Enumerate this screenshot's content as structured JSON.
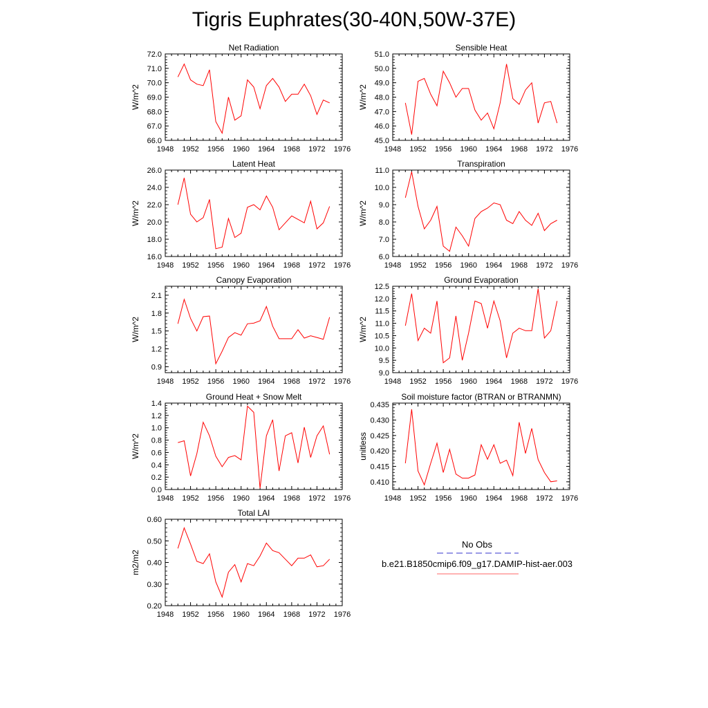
{
  "title": "Tigris Euphrates(30-40N,50W-37E)",
  "legend": {
    "entries": [
      {
        "label": "No Obs",
        "color": "#3333cc",
        "dash": "dashed"
      },
      {
        "label": "b.e21.B1850cmip6.f09_g17.DAMIP-hist-aer.003",
        "color": "#ff6666",
        "dash": "solid"
      }
    ]
  },
  "chart_data": [
    {
      "type": "line",
      "title": "Net Radiation",
      "ylabel": "W/m^2",
      "xlim": [
        1948,
        1976
      ],
      "xticks": [
        1948,
        1952,
        1956,
        1960,
        1964,
        1968,
        1972,
        1976
      ],
      "ylim": [
        66.0,
        72.0
      ],
      "yticks": [
        "66.0",
        "67.0",
        "68.0",
        "69.0",
        "70.0",
        "71.0",
        "72.0"
      ],
      "x": [
        1950,
        1951,
        1952,
        1953,
        1954,
        1955,
        1956,
        1957,
        1958,
        1959,
        1960,
        1961,
        1962,
        1963,
        1964,
        1965,
        1966,
        1967,
        1968,
        1969,
        1970,
        1971,
        1972,
        1973,
        1974
      ],
      "series": [
        {
          "color": "#ff0000",
          "values": [
            70.4,
            71.3,
            70.2,
            69.9,
            69.8,
            70.9,
            67.3,
            66.5,
            69.0,
            67.4,
            67.7,
            70.2,
            69.7,
            68.2,
            69.8,
            70.3,
            69.7,
            68.7,
            69.2,
            69.2,
            69.9,
            69.1,
            67.8,
            68.8,
            68.6
          ]
        }
      ]
    },
    {
      "type": "line",
      "title": "Sensible Heat",
      "ylabel": "W/m^2",
      "xlim": [
        1948,
        1976
      ],
      "xticks": [
        1948,
        1952,
        1956,
        1960,
        1964,
        1968,
        1972,
        1976
      ],
      "ylim": [
        45.0,
        51.0
      ],
      "yticks": [
        "45.0",
        "46.0",
        "47.0",
        "48.0",
        "49.0",
        "50.0",
        "51.0"
      ],
      "x": [
        1950,
        1951,
        1952,
        1953,
        1954,
        1955,
        1956,
        1957,
        1958,
        1959,
        1960,
        1961,
        1962,
        1963,
        1964,
        1965,
        1966,
        1967,
        1968,
        1969,
        1970,
        1971,
        1972,
        1973,
        1974
      ],
      "series": [
        {
          "color": "#ff0000",
          "values": [
            47.6,
            45.4,
            49.1,
            49.3,
            48.2,
            47.4,
            49.8,
            49.0,
            48.0,
            48.6,
            48.6,
            47.1,
            46.4,
            46.9,
            45.8,
            47.6,
            50.3,
            47.9,
            47.5,
            48.5,
            49.0,
            46.2,
            47.6,
            47.7,
            46.2
          ]
        }
      ]
    },
    {
      "type": "line",
      "title": "Latent Heat",
      "ylabel": "W/m^2",
      "xlim": [
        1948,
        1976
      ],
      "xticks": [
        1948,
        1952,
        1956,
        1960,
        1964,
        1968,
        1972,
        1976
      ],
      "ylim": [
        16.0,
        26.0
      ],
      "yticks": [
        "16.0",
        "18.0",
        "20.0",
        "22.0",
        "24.0",
        "26.0"
      ],
      "x": [
        1950,
        1951,
        1952,
        1953,
        1954,
        1955,
        1956,
        1957,
        1958,
        1959,
        1960,
        1961,
        1962,
        1963,
        1964,
        1965,
        1966,
        1967,
        1968,
        1969,
        1970,
        1971,
        1972,
        1973,
        1974
      ],
      "series": [
        {
          "color": "#ff0000",
          "values": [
            22.0,
            25.1,
            20.9,
            20.0,
            20.5,
            22.6,
            16.9,
            17.1,
            20.4,
            18.2,
            18.7,
            21.7,
            22.0,
            21.4,
            23.0,
            21.7,
            19.1,
            19.9,
            20.7,
            20.3,
            19.9,
            22.4,
            19.2,
            19.9,
            21.8
          ]
        }
      ]
    },
    {
      "type": "line",
      "title": "Transpiration",
      "ylabel": "W/m^2",
      "xlim": [
        1948,
        1976
      ],
      "xticks": [
        1948,
        1952,
        1956,
        1960,
        1964,
        1968,
        1972,
        1976
      ],
      "ylim": [
        6.0,
        11.0
      ],
      "yticks": [
        "6.0",
        "7.0",
        "8.0",
        "9.0",
        "10.0",
        "11.0"
      ],
      "x": [
        1950,
        1951,
        1952,
        1953,
        1954,
        1955,
        1956,
        1957,
        1958,
        1959,
        1960,
        1961,
        1962,
        1963,
        1964,
        1965,
        1966,
        1967,
        1968,
        1969,
        1970,
        1971,
        1972,
        1973,
        1974
      ],
      "series": [
        {
          "color": "#ff0000",
          "values": [
            9.4,
            10.9,
            8.9,
            7.6,
            8.1,
            8.9,
            6.6,
            6.3,
            7.7,
            7.2,
            6.6,
            8.2,
            8.6,
            8.8,
            9.1,
            9.0,
            8.1,
            7.9,
            8.6,
            8.1,
            7.8,
            8.5,
            7.5,
            7.9,
            8.1
          ]
        }
      ]
    },
    {
      "type": "line",
      "title": "Canopy Evaporation",
      "ylabel": "W/m^2",
      "xlim": [
        1948,
        1976
      ],
      "xticks": [
        1948,
        1952,
        1956,
        1960,
        1964,
        1968,
        1972,
        1976
      ],
      "ylim": [
        0.8,
        2.25
      ],
      "yticks": [
        "0.9",
        "1.2",
        "1.5",
        "1.8",
        "2.1"
      ],
      "x": [
        1950,
        1951,
        1952,
        1953,
        1954,
        1955,
        1956,
        1957,
        1958,
        1959,
        1960,
        1961,
        1962,
        1963,
        1964,
        1965,
        1966,
        1967,
        1968,
        1969,
        1970,
        1971,
        1972,
        1973,
        1974
      ],
      "series": [
        {
          "color": "#ff0000",
          "values": [
            1.62,
            2.03,
            1.71,
            1.5,
            1.74,
            1.75,
            0.95,
            1.16,
            1.39,
            1.47,
            1.43,
            1.62,
            1.63,
            1.67,
            1.91,
            1.58,
            1.37,
            1.37,
            1.37,
            1.52,
            1.38,
            1.42,
            1.39,
            1.36,
            1.73
          ]
        }
      ]
    },
    {
      "type": "line",
      "title": "Ground Evaporation",
      "ylabel": "W/m^2",
      "xlim": [
        1948,
        1976
      ],
      "xticks": [
        1948,
        1952,
        1956,
        1960,
        1964,
        1968,
        1972,
        1976
      ],
      "ylim": [
        9.0,
        12.5
      ],
      "yticks": [
        "9.0",
        "9.5",
        "10.0",
        "10.5",
        "11.0",
        "11.5",
        "12.0",
        "12.5"
      ],
      "x": [
        1950,
        1951,
        1952,
        1953,
        1954,
        1955,
        1956,
        1957,
        1958,
        1959,
        1960,
        1961,
        1962,
        1963,
        1964,
        1965,
        1966,
        1967,
        1968,
        1969,
        1970,
        1971,
        1972,
        1973,
        1974
      ],
      "series": [
        {
          "color": "#ff0000",
          "values": [
            10.9,
            12.2,
            10.3,
            10.8,
            10.6,
            11.9,
            9.4,
            9.6,
            11.3,
            9.5,
            10.6,
            11.9,
            11.8,
            10.8,
            11.9,
            11.1,
            9.6,
            10.6,
            10.8,
            10.7,
            10.7,
            12.4,
            10.4,
            10.7,
            11.9
          ]
        }
      ]
    },
    {
      "type": "line",
      "title": "Ground Heat + Snow Melt",
      "ylabel": "W/m^2",
      "xlim": [
        1948,
        1976
      ],
      "xticks": [
        1948,
        1952,
        1956,
        1960,
        1964,
        1968,
        1972,
        1976
      ],
      "ylim": [
        0.0,
        1.4
      ],
      "yticks": [
        "0.0",
        "0.2",
        "0.4",
        "0.6",
        "0.8",
        "1.0",
        "1.2",
        "1.4"
      ],
      "x": [
        1950,
        1951,
        1952,
        1953,
        1954,
        1955,
        1956,
        1957,
        1958,
        1959,
        1960,
        1961,
        1962,
        1963,
        1964,
        1965,
        1966,
        1967,
        1968,
        1969,
        1970,
        1971,
        1972,
        1973,
        1974
      ],
      "series": [
        {
          "color": "#ff0000",
          "values": [
            0.76,
            0.79,
            0.22,
            0.58,
            1.09,
            0.87,
            0.54,
            0.37,
            0.52,
            0.55,
            0.48,
            1.35,
            1.25,
            0.02,
            0.87,
            1.13,
            0.3,
            0.87,
            0.92,
            0.43,
            1.01,
            0.52,
            0.87,
            1.03,
            0.57
          ]
        }
      ]
    },
    {
      "type": "line",
      "title": "Soil moisture factor (BTRAN or BTRANMN)",
      "ylabel": "unitless",
      "xlim": [
        1948,
        1976
      ],
      "xticks": [
        1948,
        1952,
        1956,
        1960,
        1964,
        1968,
        1972,
        1976
      ],
      "ylim": [
        0.4075,
        0.4355
      ],
      "yticks": [
        "0.410",
        "0.415",
        "0.420",
        "0.425",
        "0.430",
        "0.435"
      ],
      "x": [
        1950,
        1951,
        1952,
        1953,
        1954,
        1955,
        1956,
        1957,
        1958,
        1959,
        1960,
        1961,
        1962,
        1963,
        1964,
        1965,
        1966,
        1967,
        1968,
        1969,
        1970,
        1971,
        1972,
        1973,
        1974
      ],
      "series": [
        {
          "color": "#ff0000",
          "values": [
            0.416,
            0.4335,
            0.4135,
            0.409,
            0.416,
            0.4225,
            0.413,
            0.4205,
            0.4125,
            0.4112,
            0.4112,
            0.4122,
            0.422,
            0.4173,
            0.422,
            0.416,
            0.417,
            0.412,
            0.4293,
            0.4192,
            0.4273,
            0.4172,
            0.413,
            0.41,
            0.4103
          ]
        }
      ]
    },
    {
      "type": "line",
      "title": "Total LAI",
      "ylabel": "m2/m2",
      "xlim": [
        1948,
        1976
      ],
      "xticks": [
        1948,
        1952,
        1956,
        1960,
        1964,
        1968,
        1972,
        1976
      ],
      "ylim": [
        0.2,
        0.6
      ],
      "yticks": [
        "0.20",
        "0.30",
        "0.40",
        "0.50",
        "0.60"
      ],
      "x": [
        1950,
        1951,
        1952,
        1953,
        1954,
        1955,
        1956,
        1957,
        1958,
        1959,
        1960,
        1961,
        1962,
        1963,
        1964,
        1965,
        1966,
        1967,
        1968,
        1969,
        1970,
        1971,
        1972,
        1973,
        1974
      ],
      "series": [
        {
          "color": "#ff0000",
          "values": [
            0.465,
            0.56,
            0.485,
            0.405,
            0.395,
            0.44,
            0.31,
            0.24,
            0.355,
            0.39,
            0.31,
            0.395,
            0.385,
            0.43,
            0.49,
            0.455,
            0.445,
            0.415,
            0.385,
            0.42,
            0.42,
            0.435,
            0.38,
            0.385,
            0.415
          ]
        }
      ]
    }
  ]
}
